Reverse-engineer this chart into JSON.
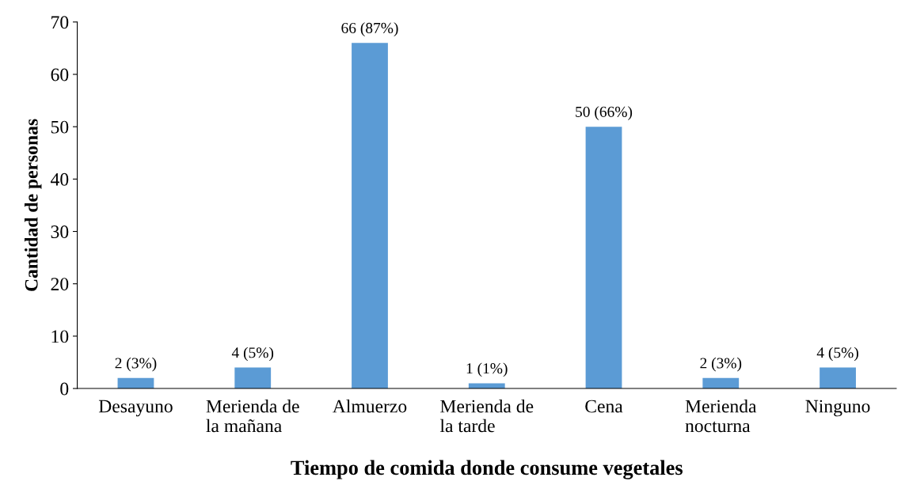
{
  "chart_data": {
    "type": "bar",
    "xlabel": "Tiempo de comida donde consume vegetales",
    "ylabel": "Cantidad de personas",
    "categories": [
      "Desayuno",
      "Merienda de\nla mañana",
      "Almuerzo",
      "Merienda de\nla tarde",
      "Cena",
      "Merienda\nnocturna",
      "Ninguno"
    ],
    "values": [
      2,
      4,
      66,
      1,
      50,
      2,
      4
    ],
    "value_labels": [
      "2 (3%)",
      "4 (5%)",
      "66 (87%)",
      "1 (1%)",
      "50 (66%)",
      "2 (3%)",
      "4 (5%)"
    ],
    "color": "#5b9bd5",
    "ylim": [
      0,
      70
    ],
    "yticks": [
      0,
      10,
      20,
      30,
      40,
      50,
      60,
      70
    ],
    "grid": false,
    "legend": false
  }
}
